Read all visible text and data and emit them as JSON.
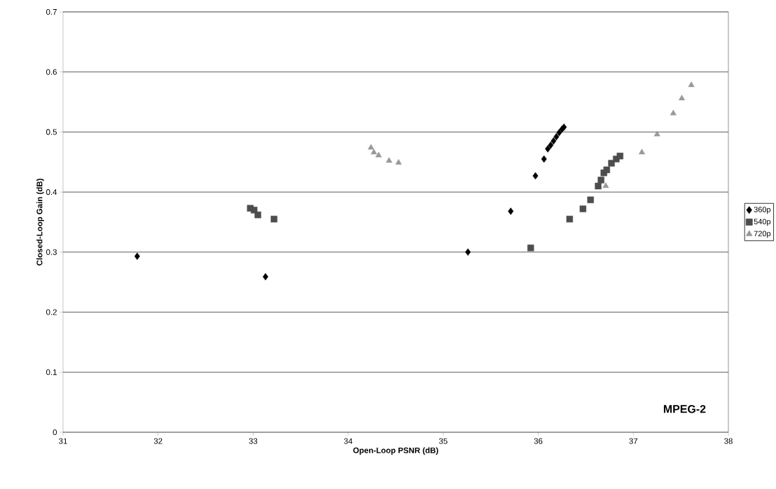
{
  "chart_data": {
    "type": "scatter",
    "xlabel": "Open-Loop PSNR (dB)",
    "ylabel": "Closed-Loop Gain (dB)",
    "xlim": [
      31,
      38
    ],
    "xticks": [
      31,
      32,
      33,
      34,
      35,
      36,
      37,
      38
    ],
    "ylim": [
      0,
      0.7
    ],
    "yticks": [
      0,
      0.1,
      0.2,
      0.3,
      0.4,
      0.5,
      0.6,
      0.7
    ],
    "grid": "y",
    "legend": "right",
    "annotations": [
      "MPEG-2"
    ],
    "series": [
      {
        "name": "360p",
        "color": "#000000",
        "marker": "diamond",
        "x": [
          31.78,
          33.13,
          35.26,
          35.71,
          35.97,
          36.06,
          36.1,
          36.13,
          36.16,
          36.19,
          36.22,
          36.25,
          36.27
        ],
        "values": [
          0.293,
          0.259,
          0.3,
          0.368,
          0.427,
          0.455,
          0.472,
          0.478,
          0.485,
          0.492,
          0.499,
          0.505,
          0.508
        ]
      },
      {
        "name": "540p",
        "color": "#4d4d4d",
        "marker": "square",
        "x": [
          32.97,
          33.01,
          33.05,
          33.22,
          35.92,
          36.33,
          36.47,
          36.55,
          36.63,
          36.66,
          36.69,
          36.72,
          36.77,
          36.82,
          36.86
        ],
        "values": [
          0.373,
          0.37,
          0.362,
          0.355,
          0.307,
          0.355,
          0.372,
          0.387,
          0.41,
          0.42,
          0.432,
          0.437,
          0.448,
          0.455,
          0.46
        ]
      },
      {
        "name": "720p",
        "color": "#999999",
        "marker": "triangle",
        "x": [
          34.24,
          34.27,
          34.32,
          34.43,
          34.53,
          36.71,
          37.09,
          37.25,
          37.42,
          37.51,
          37.61
        ],
        "values": [
          0.474,
          0.466,
          0.461,
          0.452,
          0.449,
          0.41,
          0.466,
          0.496,
          0.531,
          0.556,
          0.578
        ]
      }
    ]
  }
}
